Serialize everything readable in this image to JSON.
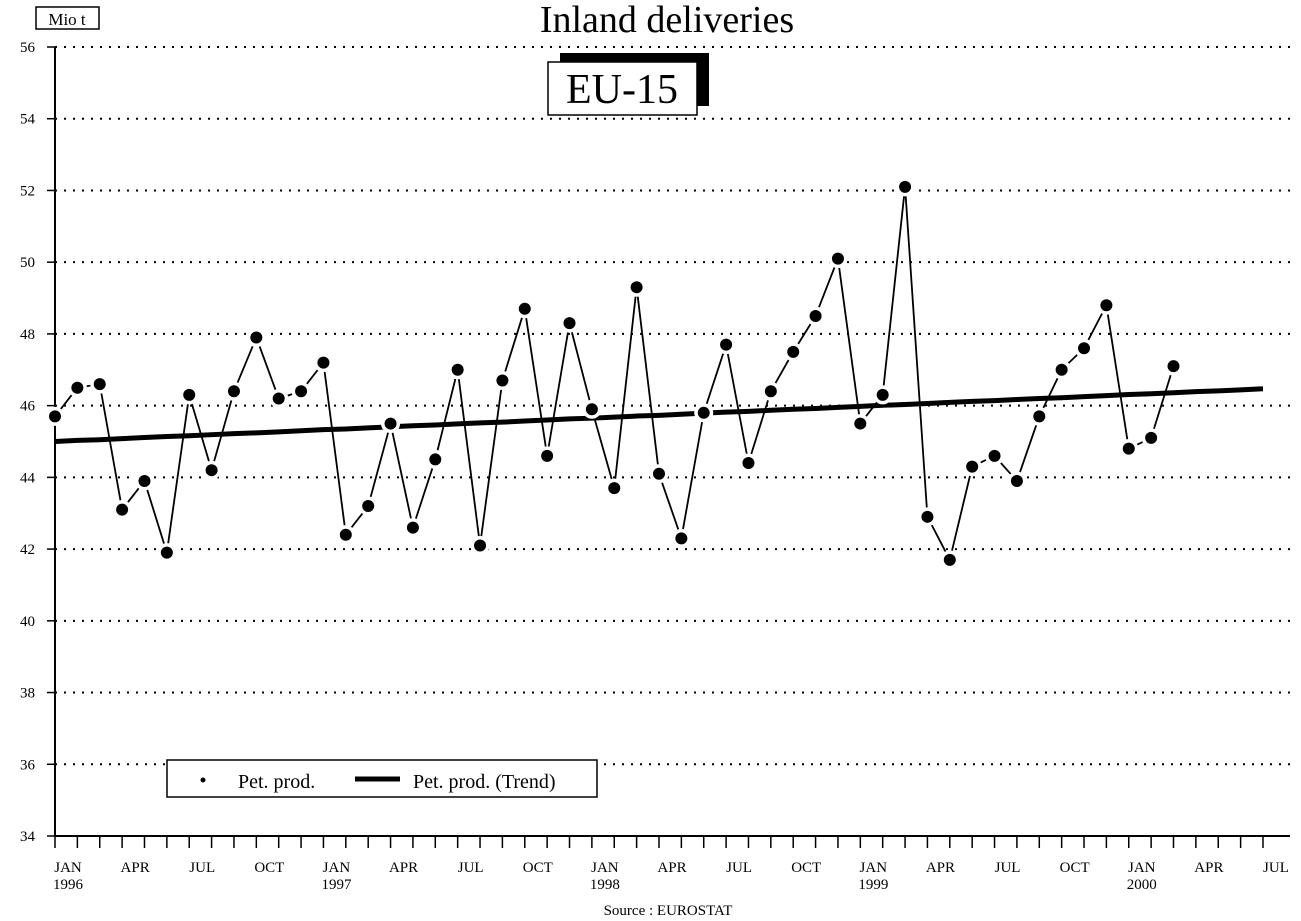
{
  "chart_data": {
    "type": "line",
    "title": "Inland deliveries",
    "subtitle": "EU-15",
    "y_label": "Mio t",
    "source": "Source : EUROSTAT",
    "categories": [
      "JAN 1996",
      null,
      null,
      "APR",
      null,
      null,
      "JUL",
      null,
      null,
      "OCT",
      null,
      null,
      "JAN 1997",
      null,
      null,
      "APR",
      null,
      null,
      "JUL",
      null,
      null,
      "OCT",
      null,
      null,
      "JAN 1998",
      null,
      null,
      "APR",
      null,
      null,
      "JUL",
      null,
      null,
      "OCT",
      null,
      null,
      "JAN 1999",
      null,
      null,
      "APR",
      null,
      null,
      "JUL",
      null,
      null,
      "OCT",
      null,
      null,
      "JAN 2000",
      null,
      null,
      "APR",
      null,
      null,
      "JUL"
    ],
    "series": [
      {
        "name": "Pet. prod.",
        "color": "#000000",
        "values": [
          45.7,
          46.5,
          46.6,
          43.1,
          43.9,
          41.9,
          46.3,
          44.2,
          46.4,
          47.9,
          46.2,
          46.4,
          47.2,
          42.4,
          43.2,
          45.5,
          42.6,
          44.5,
          47.0,
          42.1,
          46.7,
          48.7,
          44.6,
          48.3,
          45.9,
          43.7,
          49.3,
          44.1,
          42.3,
          45.8,
          47.7,
          44.4,
          46.4,
          47.5,
          48.5,
          50.1,
          45.5,
          46.3,
          52.1,
          42.9,
          41.7,
          44.3,
          44.6,
          43.9,
          45.7,
          47.0,
          47.6,
          48.8,
          44.8,
          45.1,
          47.1,
          null,
          null,
          null,
          null
        ]
      },
      {
        "name": "Pet. prod. (Trend)",
        "color": "#000000",
        "values": [
          45.0,
          45.03,
          45.05,
          45.08,
          45.11,
          45.14,
          45.16,
          45.19,
          45.22,
          45.24,
          45.27,
          45.3,
          45.33,
          45.35,
          45.38,
          45.41,
          45.44,
          45.46,
          45.49,
          45.52,
          45.54,
          45.57,
          45.6,
          45.63,
          45.65,
          45.68,
          45.71,
          45.73,
          45.76,
          45.79,
          45.82,
          45.84,
          45.87,
          45.9,
          45.92,
          45.95,
          45.98,
          46.01,
          46.03,
          46.06,
          46.09,
          46.12,
          46.14,
          46.17,
          46.2,
          46.22,
          46.25,
          46.28,
          46.31,
          46.33,
          46.36,
          46.39,
          46.41,
          46.44,
          46.47
        ]
      }
    ],
    "ylim": [
      34,
      56
    ],
    "yticks": [
      34,
      36,
      38,
      40,
      42,
      44,
      46,
      48,
      50,
      52,
      54,
      56
    ],
    "grid": true,
    "legend": "lower left"
  }
}
